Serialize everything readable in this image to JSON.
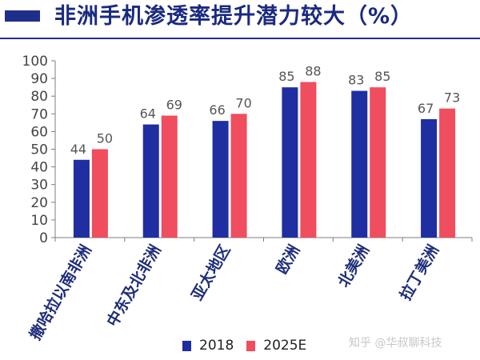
{
  "header": {
    "title": "非洲手机渗透率提升潜力较大（%）"
  },
  "colors": {
    "header_bar": "#1f2e8a",
    "series_2018": "#1f2ea0",
    "series_2025e": "#f04d5e",
    "category_text": "#1f2e7a"
  },
  "watermark": "知乎 @华叔聊科技",
  "chart_data": {
    "type": "bar",
    "title": "非洲手机渗透率提升潜力较大（%）",
    "categories": [
      "撒哈拉以南非洲",
      "中东及北非洲",
      "亚太地区",
      "欧洲",
      "北美洲",
      "拉丁美洲"
    ],
    "series": [
      {
        "name": "2018",
        "values": [
          44,
          64,
          66,
          85,
          83,
          67
        ]
      },
      {
        "name": "2025E",
        "values": [
          50,
          69,
          70,
          88,
          85,
          73
        ]
      }
    ],
    "ylim": [
      0,
      100
    ],
    "yticks": [
      0,
      10,
      20,
      30,
      40,
      50,
      60,
      70,
      80,
      90,
      100
    ],
    "xlabel": "",
    "ylabel": "",
    "grid": false,
    "legend_position": "bottom"
  }
}
